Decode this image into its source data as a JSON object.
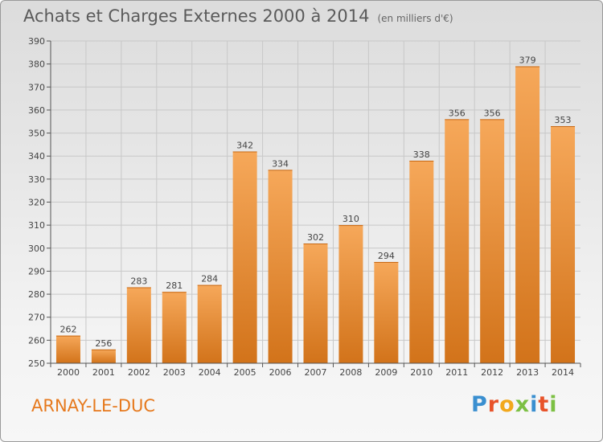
{
  "header": {
    "title": "Achats et Charges Externes 2000 à 2014",
    "unit": "(en milliers d'€)"
  },
  "footer": {
    "place": "ARNAY-LE-DUC",
    "logo": "Proxiti",
    "logo_colors": [
      "#3a8fd0",
      "#e8532a",
      "#f2a81d",
      "#7cc043",
      "#3a8fd0",
      "#e8532a",
      "#7cc043"
    ]
  },
  "colors": {
    "bar_light": "#f6a85a",
    "bar_dark": "#d2731a",
    "grid": "#c8c8c8",
    "axis": "#555555",
    "text": "#444444"
  },
  "chart_data": {
    "type": "bar",
    "title": "Achats et Charges Externes 2000 à 2014",
    "subtitle": "(en milliers d'€)",
    "categories": [
      "2000",
      "2001",
      "2002",
      "2003",
      "2004",
      "2005",
      "2006",
      "2007",
      "2008",
      "2009",
      "2010",
      "2011",
      "2012",
      "2013",
      "2014"
    ],
    "values": [
      262,
      256,
      283,
      281,
      284,
      342,
      334,
      302,
      310,
      294,
      338,
      356,
      356,
      379,
      353
    ],
    "ylim": [
      250,
      390
    ],
    "yticks": [
      250,
      260,
      270,
      280,
      290,
      300,
      310,
      320,
      330,
      340,
      350,
      360,
      370,
      380,
      390
    ],
    "grid": true,
    "xlabel": "",
    "ylabel": ""
  }
}
